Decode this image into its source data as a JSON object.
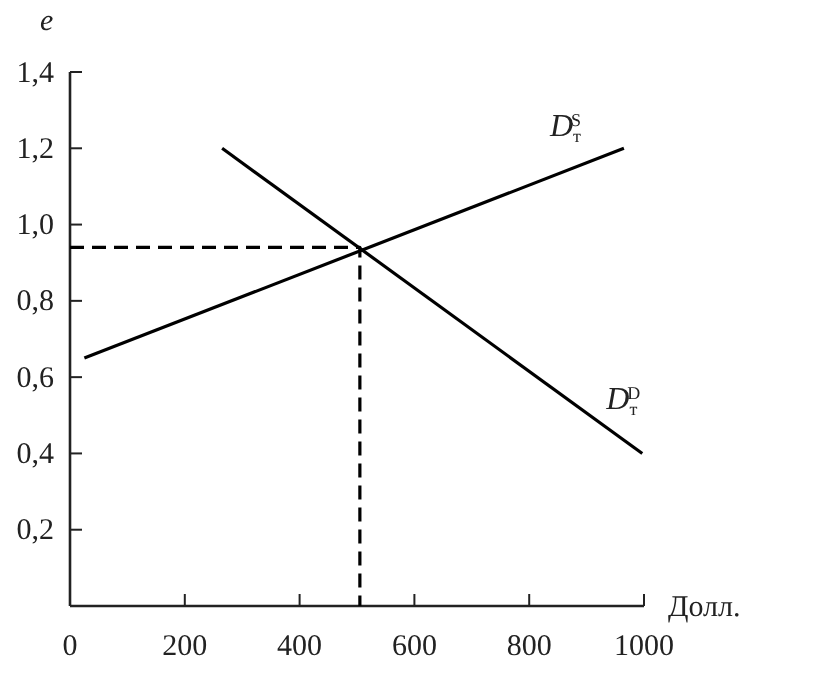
{
  "chart_data": {
    "type": "line",
    "xlabel": "Долл.",
    "ylabel": "e",
    "xlim": [
      0,
      1000
    ],
    "ylim": [
      0,
      1.4
    ],
    "xticks": [
      0,
      200,
      400,
      600,
      800,
      1000
    ],
    "yticks": [
      {
        "value": 0.2,
        "label": "0,2"
      },
      {
        "value": 0.4,
        "label": "0,4"
      },
      {
        "value": 0.6,
        "label": "0,6"
      },
      {
        "value": 0.8,
        "label": "0,8"
      },
      {
        "value": 1.0,
        "label": "1,0"
      },
      {
        "value": 1.2,
        "label": "1,2"
      },
      {
        "value": 1.4,
        "label": "1,4"
      }
    ],
    "grid": false,
    "legend": false,
    "marker": "none",
    "series": [
      {
        "name": "D$_{т}$$^{S}$",
        "color": "#000000",
        "x": [
          25,
          965
        ],
        "values": [
          0.65,
          1.2
        ]
      },
      {
        "name": "D$_{т}$$^{D}$",
        "color": "#000000",
        "x": [
          265,
          997
        ],
        "values": [
          1.2,
          0.4
        ]
      },
      {
        "color": "#000000",
        "line_style": "dashed",
        "x": [
          0,
          505,
          505
        ],
        "values": [
          0.94,
          0.94,
          0
        ]
      }
    ]
  }
}
